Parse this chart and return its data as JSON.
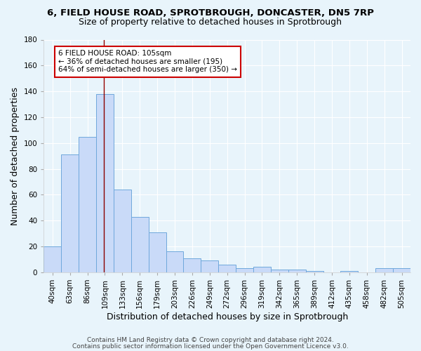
{
  "title_line1": "6, FIELD HOUSE ROAD, SPROTBROUGH, DONCASTER, DN5 7RP",
  "title_line2": "Size of property relative to detached houses in Sprotbrough",
  "xlabel": "Distribution of detached houses by size in Sprotbrough",
  "ylabel": "Number of detached properties",
  "bar_labels": [
    "40sqm",
    "63sqm",
    "86sqm",
    "109sqm",
    "133sqm",
    "156sqm",
    "179sqm",
    "203sqm",
    "226sqm",
    "249sqm",
    "272sqm",
    "296sqm",
    "319sqm",
    "342sqm",
    "365sqm",
    "389sqm",
    "412sqm",
    "435sqm",
    "458sqm",
    "482sqm",
    "505sqm"
  ],
  "bar_values": [
    20,
    91,
    105,
    138,
    64,
    43,
    31,
    16,
    11,
    9,
    6,
    3,
    4,
    2,
    2,
    1,
    0,
    1,
    0,
    3,
    3
  ],
  "bar_color": "#c9daf8",
  "bar_edge_color": "#6fa8dc",
  "background_color": "#e8f4fb",
  "grid_color": "#ffffff",
  "annotation_line1": "6 FIELD HOUSE ROAD: 105sqm",
  "annotation_line2": "← 36% of detached houses are smaller (195)",
  "annotation_line3": "64% of semi-detached houses are larger (350) →",
  "annotation_box_color": "white",
  "annotation_box_edge_color": "#cc0000",
  "vline_x": 2.95,
  "vline_color": "#8b0000",
  "ylim": [
    0,
    180
  ],
  "yticks": [
    0,
    20,
    40,
    60,
    80,
    100,
    120,
    140,
    160,
    180
  ],
  "footer_line1": "Contains HM Land Registry data © Crown copyright and database right 2024.",
  "footer_line2": "Contains public sector information licensed under the Open Government Licence v3.0.",
  "title_fontsize": 9.5,
  "subtitle_fontsize": 9,
  "axis_label_fontsize": 9,
  "tick_fontsize": 7.5,
  "footer_fontsize": 6.5
}
